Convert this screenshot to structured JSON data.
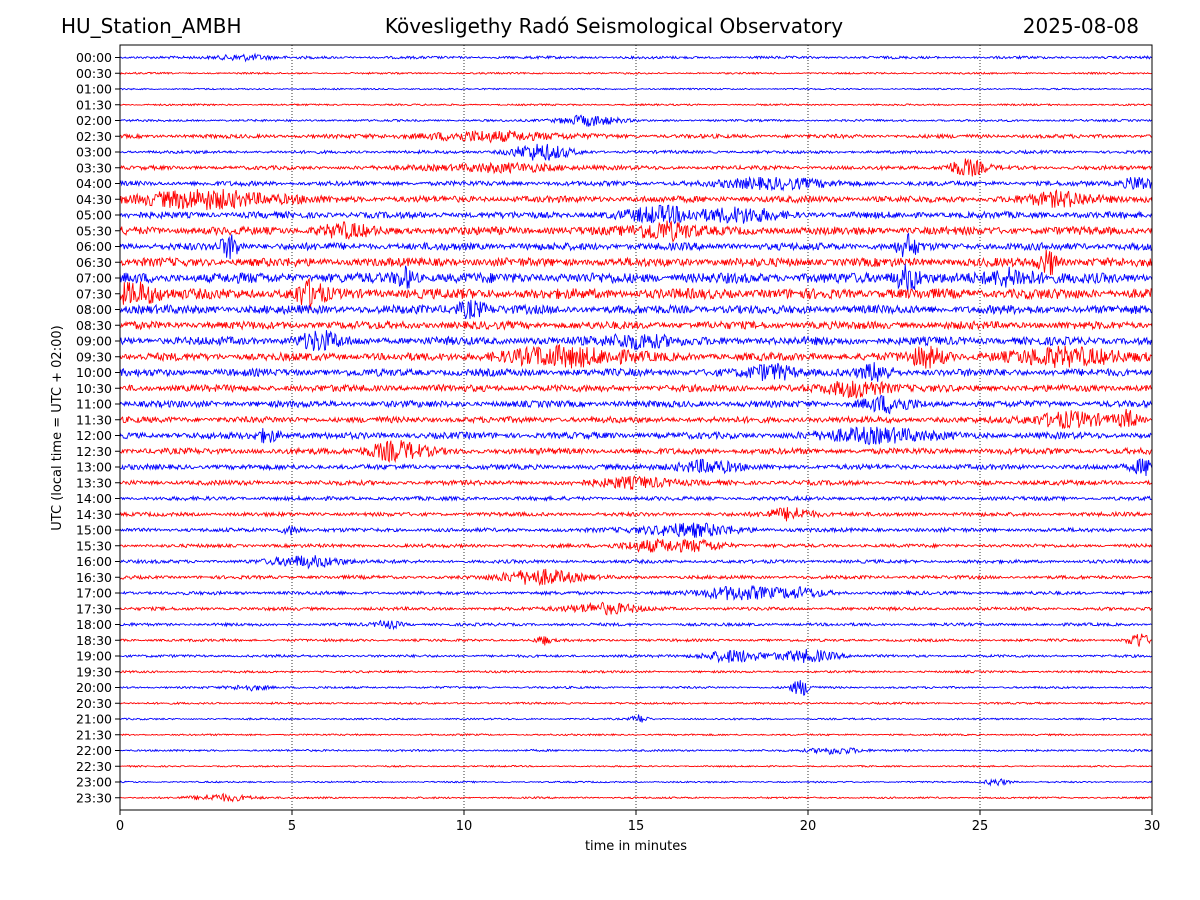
{
  "header": {
    "station": "HU_Station_AMBH",
    "observatory": "Kövesligethy Radó Seismological Observatory",
    "date": "2025-08-08"
  },
  "chart_data": {
    "type": "line",
    "xlabel": "time in minutes",
    "ylabel": "UTC (local time = UTC + 02:00)",
    "xlim": [
      0,
      30
    ],
    "x_ticks": [
      "0",
      "5",
      "10",
      "15",
      "20",
      "25",
      "30"
    ],
    "grid": "vertical dotted lines at x ticks",
    "colors": {
      "even_hour_rows": "#0000ff",
      "half_hour_rows": "#ff0000"
    },
    "rows": [
      "00:00",
      "00:30",
      "01:00",
      "01:30",
      "02:00",
      "02:30",
      "03:00",
      "03:30",
      "04:00",
      "04:30",
      "05:00",
      "05:30",
      "06:00",
      "06:30",
      "07:00",
      "07:30",
      "08:00",
      "08:30",
      "09:00",
      "09:30",
      "10:00",
      "10:30",
      "11:00",
      "11:30",
      "12:00",
      "12:30",
      "13:00",
      "13:30",
      "14:00",
      "14:30",
      "15:00",
      "15:30",
      "16:00",
      "16:30",
      "17:00",
      "17:30",
      "18:00",
      "18:30",
      "19:00",
      "19:30",
      "20:00",
      "20:30",
      "21:00",
      "21:30",
      "22:00",
      "22:30",
      "23:00",
      "23:30"
    ],
    "noise_level": [
      0.12,
      0.08,
      0.07,
      0.08,
      0.1,
      0.18,
      0.14,
      0.18,
      0.22,
      0.3,
      0.3,
      0.38,
      0.34,
      0.4,
      0.48,
      0.48,
      0.4,
      0.36,
      0.38,
      0.36,
      0.34,
      0.32,
      0.3,
      0.28,
      0.3,
      0.28,
      0.24,
      0.22,
      0.18,
      0.18,
      0.18,
      0.16,
      0.16,
      0.16,
      0.16,
      0.15,
      0.14,
      0.12,
      0.12,
      0.1,
      0.1,
      0.09,
      0.08,
      0.08,
      0.09,
      0.07,
      0.07,
      0.08
    ],
    "events": [
      {
        "row": "00:00",
        "t": 3.6,
        "amp": 0.35,
        "dur": 1.0
      },
      {
        "row": "02:00",
        "t": 13.6,
        "amp": 0.6,
        "dur": 1.2
      },
      {
        "row": "02:30",
        "t": 10.8,
        "amp": 0.5,
        "dur": 3.0
      },
      {
        "row": "03:00",
        "t": 12.2,
        "amp": 0.9,
        "dur": 1.2
      },
      {
        "row": "03:30",
        "t": 24.6,
        "amp": 0.9,
        "dur": 0.8
      },
      {
        "row": "03:30",
        "t": 11.0,
        "amp": 0.4,
        "dur": 3.0
      },
      {
        "row": "04:00",
        "t": 19.0,
        "amp": 0.6,
        "dur": 2.0
      },
      {
        "row": "04:00",
        "t": 29.6,
        "amp": 0.8,
        "dur": 0.6
      },
      {
        "row": "04:30",
        "t": 2.5,
        "amp": 0.9,
        "dur": 3.0
      },
      {
        "row": "04:30",
        "t": 27.5,
        "amp": 0.7,
        "dur": 1.5
      },
      {
        "row": "05:00",
        "t": 15.8,
        "amp": 0.8,
        "dur": 1.5
      },
      {
        "row": "05:00",
        "t": 18.0,
        "amp": 0.7,
        "dur": 1.5
      },
      {
        "row": "05:30",
        "t": 15.8,
        "amp": 1.0,
        "dur": 1.2
      },
      {
        "row": "05:30",
        "t": 6.5,
        "amp": 0.6,
        "dur": 1.0
      },
      {
        "row": "06:00",
        "t": 3.2,
        "amp": 1.2,
        "dur": 0.4
      },
      {
        "row": "06:00",
        "t": 22.9,
        "amp": 1.2,
        "dur": 0.4
      },
      {
        "row": "06:30",
        "t": 27.0,
        "amp": 1.3,
        "dur": 0.4
      },
      {
        "row": "07:00",
        "t": 22.9,
        "amp": 1.4,
        "dur": 0.5
      },
      {
        "row": "07:00",
        "t": 8.3,
        "amp": 1.0,
        "dur": 0.4
      },
      {
        "row": "07:00",
        "t": 26.0,
        "amp": 0.9,
        "dur": 1.0
      },
      {
        "row": "07:30",
        "t": 5.5,
        "amp": 1.3,
        "dur": 0.6
      },
      {
        "row": "07:30",
        "t": 0.5,
        "amp": 1.1,
        "dur": 1.0
      },
      {
        "row": "08:00",
        "t": 10.2,
        "amp": 0.9,
        "dur": 0.6
      },
      {
        "row": "09:00",
        "t": 5.8,
        "amp": 0.9,
        "dur": 0.8
      },
      {
        "row": "09:00",
        "t": 15.0,
        "amp": 0.8,
        "dur": 1.2
      },
      {
        "row": "09:30",
        "t": 13.0,
        "amp": 1.0,
        "dur": 2.5
      },
      {
        "row": "09:30",
        "t": 27.5,
        "amp": 1.0,
        "dur": 2.0
      },
      {
        "row": "09:30",
        "t": 23.5,
        "amp": 1.0,
        "dur": 0.8
      },
      {
        "row": "10:00",
        "t": 22.0,
        "amp": 0.9,
        "dur": 0.6
      },
      {
        "row": "10:00",
        "t": 19.0,
        "amp": 0.8,
        "dur": 1.0
      },
      {
        "row": "10:30",
        "t": 21.5,
        "amp": 0.9,
        "dur": 1.2
      },
      {
        "row": "11:00",
        "t": 22.3,
        "amp": 0.8,
        "dur": 1.0
      },
      {
        "row": "11:30",
        "t": 27.5,
        "amp": 0.8,
        "dur": 1.5
      },
      {
        "row": "11:30",
        "t": 29.3,
        "amp": 0.9,
        "dur": 0.4
      },
      {
        "row": "12:00",
        "t": 22.0,
        "amp": 0.8,
        "dur": 2.0
      },
      {
        "row": "12:00",
        "t": 4.3,
        "amp": 0.7,
        "dur": 0.5
      },
      {
        "row": "12:30",
        "t": 8.0,
        "amp": 1.0,
        "dur": 1.2
      },
      {
        "row": "13:00",
        "t": 29.8,
        "amp": 0.9,
        "dur": 0.5
      },
      {
        "row": "13:00",
        "t": 17.0,
        "amp": 0.7,
        "dur": 1.2
      },
      {
        "row": "13:30",
        "t": 15.0,
        "amp": 0.6,
        "dur": 1.5
      },
      {
        "row": "14:30",
        "t": 19.5,
        "amp": 0.7,
        "dur": 1.0
      },
      {
        "row": "15:00",
        "t": 16.5,
        "amp": 0.7,
        "dur": 2.0
      },
      {
        "row": "15:00",
        "t": 5.0,
        "amp": 0.5,
        "dur": 0.4
      },
      {
        "row": "15:30",
        "t": 15.5,
        "amp": 0.6,
        "dur": 1.5
      },
      {
        "row": "15:30",
        "t": 17.0,
        "amp": 0.5,
        "dur": 1.0
      },
      {
        "row": "16:00",
        "t": 5.5,
        "amp": 0.6,
        "dur": 1.5
      },
      {
        "row": "16:30",
        "t": 12.2,
        "amp": 0.9,
        "dur": 1.5
      },
      {
        "row": "17:00",
        "t": 18.0,
        "amp": 0.8,
        "dur": 1.5
      },
      {
        "row": "17:00",
        "t": 19.8,
        "amp": 0.5,
        "dur": 1.0
      },
      {
        "row": "17:30",
        "t": 14.0,
        "amp": 0.6,
        "dur": 1.5
      },
      {
        "row": "18:00",
        "t": 7.8,
        "amp": 0.4,
        "dur": 0.5
      },
      {
        "row": "18:30",
        "t": 29.6,
        "amp": 0.9,
        "dur": 0.4
      },
      {
        "row": "18:30",
        "t": 12.3,
        "amp": 0.5,
        "dur": 0.3
      },
      {
        "row": "19:00",
        "t": 17.8,
        "amp": 0.7,
        "dur": 1.2
      },
      {
        "row": "19:00",
        "t": 20.0,
        "amp": 0.7,
        "dur": 1.2
      },
      {
        "row": "20:00",
        "t": 19.8,
        "amp": 0.9,
        "dur": 0.4
      },
      {
        "row": "20:00",
        "t": 3.8,
        "amp": 0.3,
        "dur": 0.8
      },
      {
        "row": "21:00",
        "t": 15.1,
        "amp": 0.5,
        "dur": 0.3
      },
      {
        "row": "22:00",
        "t": 20.8,
        "amp": 0.4,
        "dur": 1.0
      },
      {
        "row": "23:00",
        "t": 25.5,
        "amp": 0.4,
        "dur": 0.5
      },
      {
        "row": "23:30",
        "t": 3.0,
        "amp": 0.4,
        "dur": 1.2
      }
    ]
  }
}
